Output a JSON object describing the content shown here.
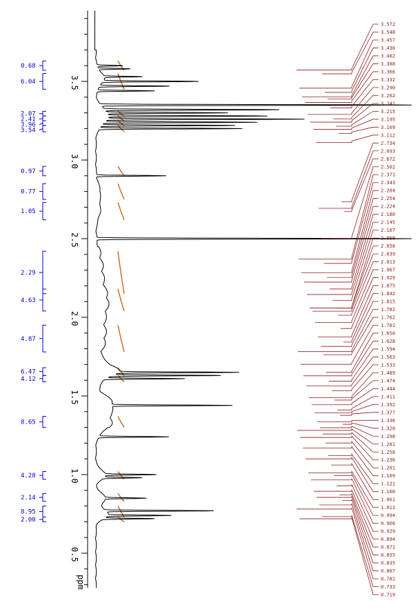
{
  "chart_data": {
    "type": "line",
    "xlabel": "ppm",
    "axis_ticks": [
      "3.5",
      "3.0",
      "2.5",
      "2.0",
      "1.5",
      "1.0",
      "0.5"
    ],
    "axis_tick_values": [
      3.5,
      3.0,
      2.5,
      2.0,
      1.5,
      1.0,
      0.5
    ],
    "ppm_range": [
      0.28,
      3.95
    ],
    "colors": {
      "spectrum": "#000000",
      "integral_curve": "#c86414",
      "integral_labels": "#0000cc",
      "peak_labels": "#8b1a1a"
    },
    "integrals": [
      {
        "label": "0.68",
        "ppm": [
          3.63,
          3.57
        ]
      },
      {
        "label": "6.04",
        "ppm": [
          3.55,
          3.45
        ]
      },
      {
        "label": "2.07",
        "ppm": [
          3.31,
          3.28
        ]
      },
      {
        "label": "2.41",
        "ppm": [
          3.28,
          3.25
        ]
      },
      {
        "label": "3.96",
        "ppm": [
          3.25,
          3.22
        ]
      },
      {
        "label": "3.54",
        "ppm": [
          3.22,
          3.18
        ]
      },
      {
        "label": "0.97",
        "ppm": [
          2.96,
          2.9
        ]
      },
      {
        "label": "0.77",
        "ppm": [
          2.85,
          2.75
        ]
      },
      {
        "label": "1.05",
        "ppm": [
          2.73,
          2.62
        ]
      },
      {
        "label": "2.29",
        "ppm": [
          2.42,
          2.15
        ]
      },
      {
        "label": "4.63",
        "ppm": [
          2.18,
          2.04
        ]
      },
      {
        "label": "4.87",
        "ppm": [
          1.95,
          1.78
        ]
      },
      {
        "label": "6.47",
        "ppm": [
          1.68,
          1.63
        ]
      },
      {
        "label": "4.12",
        "ppm": [
          1.63,
          1.59
        ]
      },
      {
        "label": "8.65",
        "ppm": [
          1.37,
          1.3
        ]
      },
      {
        "label": "4.28",
        "ppm": [
          1.02,
          0.97
        ]
      },
      {
        "label": "2.14",
        "ppm": [
          0.88,
          0.83
        ]
      },
      {
        "label": "8.95",
        "ppm": [
          0.8,
          0.73
        ]
      },
      {
        "label": "2.00",
        "ppm": [
          0.73,
          0.7
        ]
      }
    ],
    "peak_labels": [
      "3.572",
      "3.548",
      "3.457",
      "3.430",
      "3.402",
      "3.388",
      "3.366",
      "3.332",
      "3.290",
      "3.262",
      "3.241",
      "3.215",
      "3.195",
      "3.169",
      "3.112",
      "2.734",
      "2.693",
      "2.672",
      "2.502",
      "2.371",
      "2.343",
      "2.284",
      "2.254",
      "2.224",
      "2.180",
      "2.145",
      "2.107",
      "2.059",
      "2.058",
      "2.039",
      "2.013",
      "1.967",
      "1.929",
      "1.875",
      "1.842",
      "1.815",
      "1.782",
      "1.762",
      "1.701",
      "1.650",
      "1.628",
      "1.594",
      "1.563",
      "1.533",
      "1.489",
      "1.474",
      "1.444",
      "1.411",
      "1.392",
      "1.377",
      "1.336",
      "1.320",
      "1.298",
      "1.281",
      "1.258",
      "1.236",
      "1.201",
      "1.169",
      "1.121",
      "1.100",
      "1.061",
      "1.011",
      "0.994",
      "0.966",
      "0.929",
      "0.894",
      "0.871",
      "0.855",
      "0.835",
      "0.807",
      "0.781",
      "0.733",
      "0.719"
    ],
    "spectrum_peaks": [
      {
        "ppm": 3.6,
        "height": 0.08
      },
      {
        "ppm": 3.58,
        "height": 0.1
      },
      {
        "ppm": 3.53,
        "height": 0.12
      },
      {
        "ppm": 3.5,
        "height": 0.3
      },
      {
        "ppm": 3.47,
        "height": 0.22
      },
      {
        "ppm": 3.44,
        "height": 0.18
      },
      {
        "ppm": 3.35,
        "height": 1.0
      },
      {
        "ppm": 3.32,
        "height": 0.55
      },
      {
        "ppm": 3.3,
        "height": 0.38
      },
      {
        "ppm": 3.28,
        "height": 0.5
      },
      {
        "ppm": 3.26,
        "height": 0.62
      },
      {
        "ppm": 3.24,
        "height": 0.48
      },
      {
        "ppm": 3.22,
        "height": 0.42
      },
      {
        "ppm": 3.2,
        "height": 0.45
      },
      {
        "ppm": 2.9,
        "height": 0.22
      },
      {
        "ppm": 2.5,
        "height": 1.0
      },
      {
        "ppm": 1.65,
        "height": 0.38
      },
      {
        "ppm": 1.63,
        "height": 0.34
      },
      {
        "ppm": 1.61,
        "height": 0.25
      },
      {
        "ppm": 1.44,
        "height": 0.38
      },
      {
        "ppm": 1.24,
        "height": 0.22
      },
      {
        "ppm": 1.0,
        "height": 0.16
      },
      {
        "ppm": 0.98,
        "height": 0.12
      },
      {
        "ppm": 0.85,
        "height": 0.13
      },
      {
        "ppm": 0.77,
        "height": 0.34
      },
      {
        "ppm": 0.74,
        "height": 0.2
      },
      {
        "ppm": 0.72,
        "height": 0.16
      }
    ]
  }
}
